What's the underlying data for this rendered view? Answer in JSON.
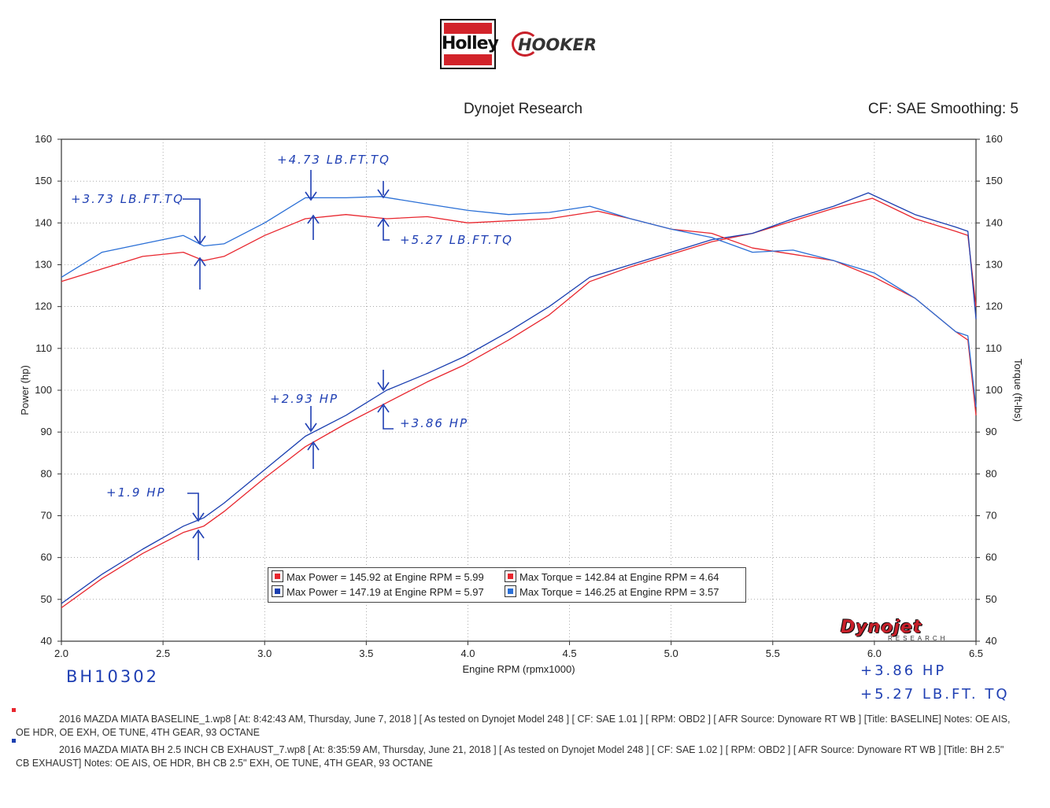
{
  "logos": {
    "holley": "Holley",
    "hooker": "HOOKER",
    "dynojet": "Dynojet",
    "dynojet_sub": "RESEARCH"
  },
  "header": {
    "title": "Dynojet Research",
    "cf": "CF: SAE Smoothing: 5"
  },
  "colors": {
    "baseline_power": "#e8262e",
    "baseline_torque": "#e8262e",
    "exhaust_power": "#1b3fb0",
    "exhaust_torque": "#2a6fd6",
    "ink": "#1f3fb3"
  },
  "chart_data": {
    "type": "line",
    "xlabel": "Engine RPM (rpmx1000)",
    "ylabel_left": "Power (hp)",
    "ylabel_right": "Torque (ft-lbs)",
    "xlim": [
      2.0,
      6.5
    ],
    "ylim": [
      40,
      160
    ],
    "x_ticks": [
      "2.0",
      "2.5",
      "3.0",
      "3.5",
      "4.0",
      "4.5",
      "5.0",
      "5.5",
      "6.0",
      "6.5"
    ],
    "y_ticks": [
      "40",
      "50",
      "60",
      "70",
      "80",
      "90",
      "100",
      "110",
      "120",
      "130",
      "140",
      "150",
      "160"
    ],
    "grid": "dotted",
    "series": [
      {
        "key": "baseline_power",
        "x": [
          2.0,
          2.2,
          2.4,
          2.6,
          2.7,
          2.8,
          3.0,
          3.2,
          3.4,
          3.6,
          3.8,
          3.98,
          4.2,
          4.4,
          4.6,
          4.8,
          5.0,
          5.2,
          5.4,
          5.6,
          5.8,
          5.99,
          6.2,
          6.4,
          6.46,
          6.5
        ],
        "y": [
          48,
          55,
          61,
          66,
          67.5,
          71,
          79,
          86.5,
          92,
          97,
          102,
          106,
          112,
          118,
          126,
          129.5,
          132.5,
          135.5,
          137.5,
          140.5,
          143.5,
          145.9,
          141,
          138,
          137,
          120
        ]
      },
      {
        "key": "exhaust_power",
        "x": [
          2.0,
          2.2,
          2.4,
          2.6,
          2.7,
          2.8,
          3.0,
          3.2,
          3.4,
          3.6,
          3.8,
          3.98,
          4.2,
          4.4,
          4.6,
          4.8,
          5.0,
          5.2,
          5.4,
          5.6,
          5.8,
          5.97,
          6.2,
          6.4,
          6.46,
          6.5
        ],
        "y": [
          49,
          56,
          62,
          67.5,
          69.5,
          73,
          81,
          89,
          94,
          100,
          104,
          108,
          114,
          120,
          127,
          130,
          133,
          136,
          137.5,
          141,
          144,
          147.2,
          142,
          139,
          138,
          117
        ]
      },
      {
        "key": "baseline_torque",
        "x": [
          2.0,
          2.2,
          2.4,
          2.6,
          2.7,
          2.8,
          3.0,
          3.2,
          3.4,
          3.6,
          3.8,
          4.0,
          4.2,
          4.4,
          4.64,
          4.8,
          5.0,
          5.2,
          5.4,
          5.6,
          5.8,
          6.0,
          6.2,
          6.4,
          6.46,
          6.5
        ],
        "y": [
          126,
          129,
          132,
          133,
          131,
          132,
          137,
          141,
          142,
          141,
          141.5,
          140,
          140.5,
          141,
          142.8,
          141,
          138.5,
          137.5,
          134,
          132.5,
          131,
          127,
          122,
          114,
          112,
          94
        ]
      },
      {
        "key": "exhaust_torque",
        "x": [
          2.0,
          2.2,
          2.4,
          2.6,
          2.7,
          2.8,
          3.0,
          3.2,
          3.4,
          3.57,
          3.8,
          4.0,
          4.2,
          4.4,
          4.6,
          4.8,
          5.0,
          5.2,
          5.4,
          5.6,
          5.8,
          6.0,
          6.2,
          6.4,
          6.46,
          6.5
        ],
        "y": [
          127,
          133,
          135,
          137,
          134.5,
          135,
          140,
          146,
          146,
          146.3,
          144.5,
          143,
          142,
          142.5,
          144,
          141,
          138.5,
          136.5,
          133,
          133.5,
          131,
          128,
          122,
          114,
          113,
          96
        ]
      }
    ],
    "legend": [
      {
        "series": "baseline_power",
        "text": "Max Power = 145.92 at Engine RPM = 5.99"
      },
      {
        "series": "baseline_torque",
        "text": "Max Torque = 142.84 at Engine RPM = 4.64"
      },
      {
        "series": "exhaust_power",
        "text": "Max Power = 147.19 at Engine RPM = 5.97"
      },
      {
        "series": "exhaust_torque",
        "text": "Max Torque = 146.25 at Engine RPM = 3.57"
      }
    ]
  },
  "annotations": {
    "tq1": "+3.73 LB.FT.TQ",
    "tq2": "+4.73 LB.FT.TQ",
    "tq3": "+5.27 LB.FT.TQ",
    "hp1": "+2.93 HP",
    "hp2": "+3.86 HP",
    "hp3": "+1.9 HP",
    "code": "BH10302",
    "sum_hp": "+3.86 HP",
    "sum_tq": "+5.27 LB.FT. TQ"
  },
  "footer": {
    "run1": "2016 MAZDA MIATA BASELINE_1.wp8 [ At: 8:42:43 AM, Thursday, June 7, 2018 ] [ As tested on Dynojet Model 248 ] [ CF: SAE 1.01 ] [ RPM: OBD2 ] [ AFR Source: Dynoware RT WB ] [Title: BASELINE]  Notes: OE AIS, OE HDR, OE EXH, OE TUNE, 4TH GEAR, 93 OCTANE",
    "run2": "2016 MAZDA MIATA BH 2.5 INCH CB EXHAUST_7.wp8 [ At: 8:35:59 AM, Thursday, June 21, 2018 ] [ As tested on Dynojet Model 248 ] [ CF: SAE 1.02 ] [ RPM: OBD2 ] [ AFR Source: Dynoware RT WB ] [Title: BH 2.5\" CB EXHAUST]  Notes: OE AIS, OE HDR, BH CB 2.5\" EXH, OE TUNE, 4TH GEAR, 93 OCTANE"
  }
}
